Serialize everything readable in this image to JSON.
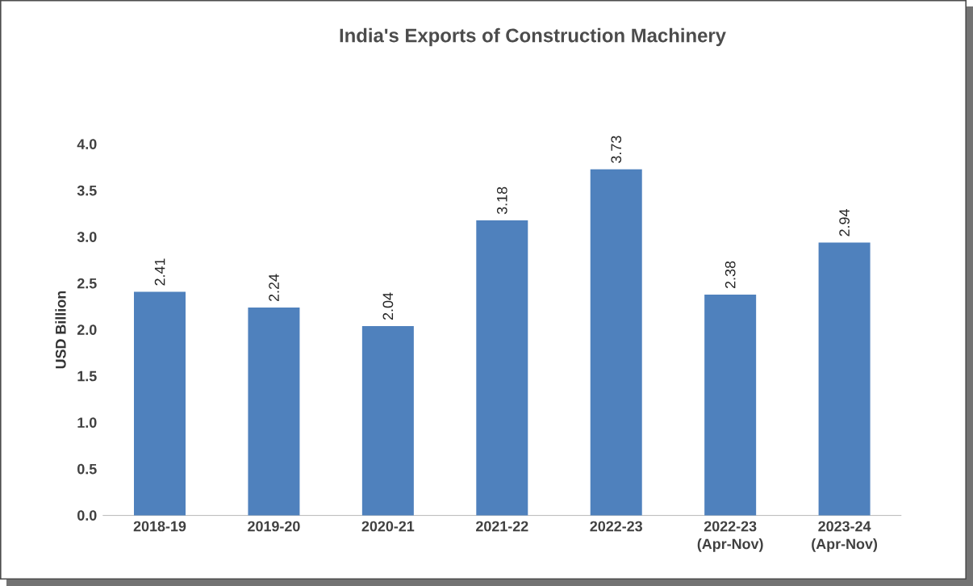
{
  "chart_data": {
    "type": "bar",
    "title": "India's Exports of Construction Machinery",
    "ylabel": "USD Billion",
    "categories": [
      "2018-19",
      "2019-20",
      "2020-21",
      "2021-22",
      "2022-23",
      "2022-23 (Apr-Nov)",
      "2023-24 (Apr-Nov)"
    ],
    "values": [
      2.41,
      2.24,
      2.04,
      3.18,
      3.73,
      2.38,
      2.94
    ],
    "color": "#4f81bd",
    "ylim": [
      0,
      4
    ],
    "yticks": [
      {
        "value": 0,
        "label": "0.0"
      },
      {
        "value": 0.5,
        "label": "0.5"
      },
      {
        "value": 1,
        "label": "1.0"
      },
      {
        "value": 1.5,
        "label": "1.5"
      },
      {
        "value": 2,
        "label": "2.0"
      },
      {
        "value": 2.5,
        "label": "2.5"
      },
      {
        "value": 3,
        "label": "3.0"
      },
      {
        "value": 3.5,
        "label": "3.5"
      },
      {
        "value": 4,
        "label": "4.0"
      }
    ],
    "data_labels": true
  }
}
